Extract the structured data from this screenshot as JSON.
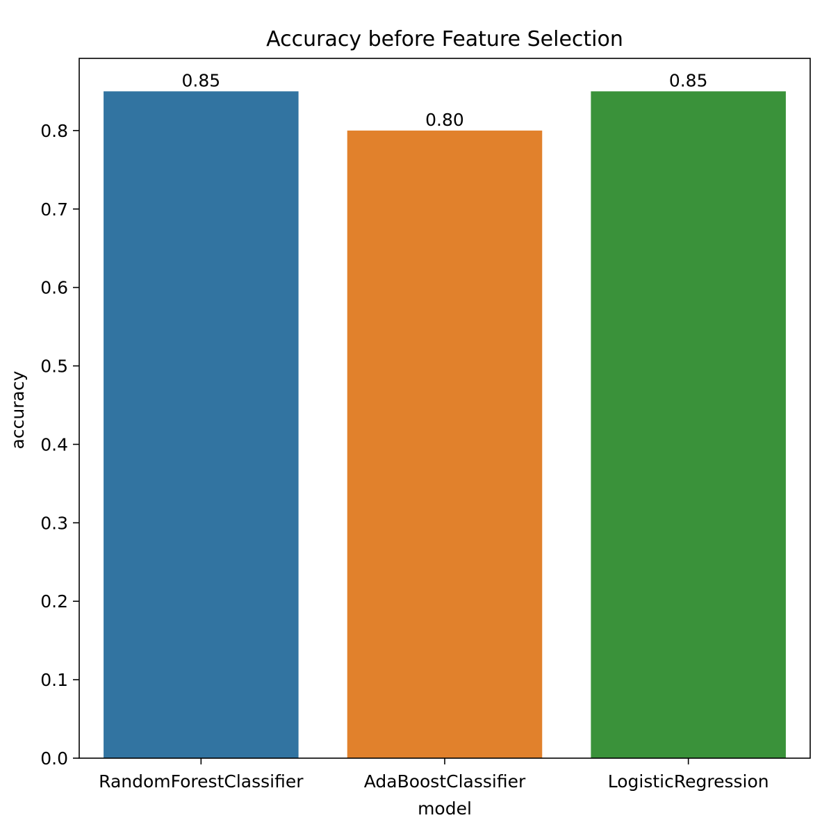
{
  "chart_data": {
    "type": "bar",
    "title": "Accuracy before Feature Selection",
    "xlabel": "model",
    "ylabel": "accuracy",
    "categories": [
      "RandomForestClassifier",
      "AdaBoostClassifier",
      "LogisticRegression"
    ],
    "values": [
      0.85,
      0.8,
      0.85
    ],
    "value_labels": [
      "0.85",
      "0.80",
      "0.85"
    ],
    "ylim": [
      0,
      0.892
    ],
    "yticks": [
      0.0,
      0.1,
      0.2,
      0.3,
      0.4,
      0.5,
      0.6,
      0.7,
      0.8
    ],
    "ytick_labels": [
      "0.0",
      "0.1",
      "0.2",
      "0.3",
      "0.4",
      "0.5",
      "0.6",
      "0.7",
      "0.8"
    ],
    "colors": [
      "#3274a1",
      "#e1812c",
      "#3a923a"
    ],
    "grid": false,
    "legend": false
  }
}
